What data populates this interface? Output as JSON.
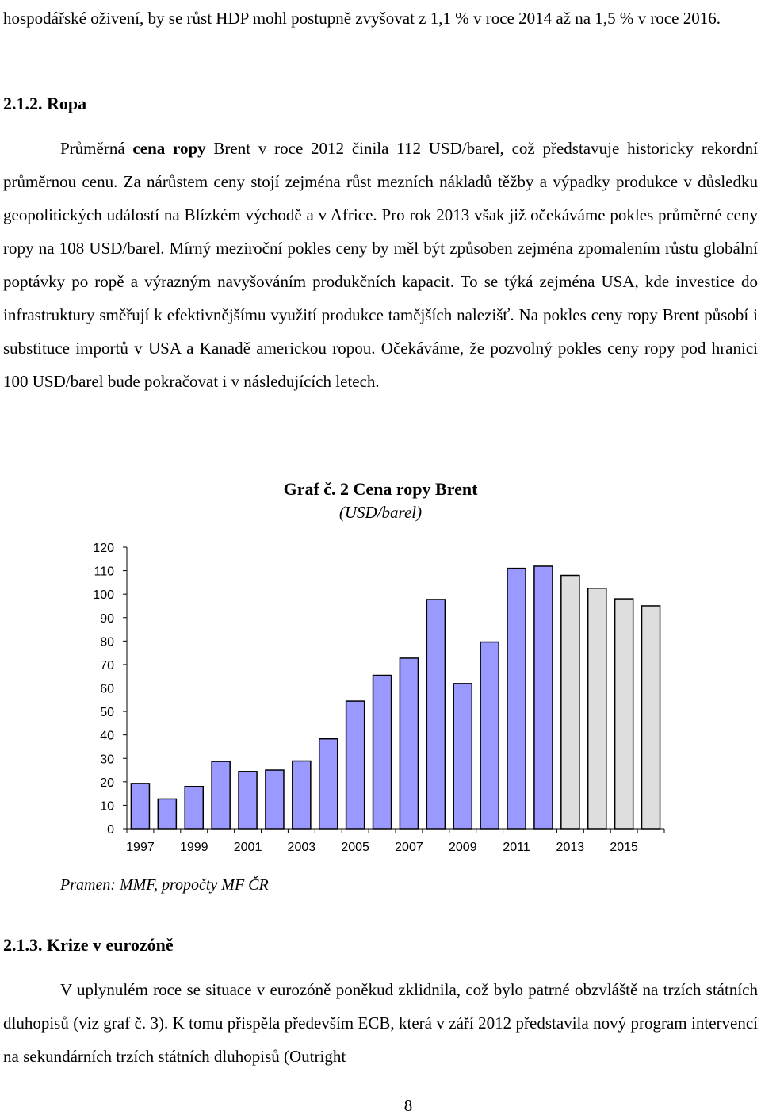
{
  "intro": {
    "text": "hospodářské oživení, by se růst HDP mohl postupně zvyšovat z 1,1 % v roce 2014 až na 1,5 % v roce 2016."
  },
  "section_ropa": {
    "heading": "2.1.2. Ropa",
    "para_lead": "Průměrná ",
    "para_bold": "cena ropy",
    "para_rest": " Brent v roce 2012 činila 112 USD/barel, což představuje historicky rekordní průměrnou cenu. Za nárůstem ceny stojí zejména růst mezních nákladů těžby a výpadky produkce v důsledku geopolitických událostí na Blízkém východě a v Africe. Pro rok 2013 však již očekáváme pokles průměrné ceny ropy na 108 USD/barel. Mírný meziroční pokles ceny by měl být způsoben zejména zpomalením růstu globální poptávky po ropě a výrazným navyšováním produkčních kapacit. To se týká zejména USA, kde investice do infrastruktury směřují k efektivnějšímu využití produkce tamějších nalezišť. Na pokles ceny ropy Brent působí i substituce importů v USA a Kanadě americkou ropou. Očekáváme, že pozvolný pokles ceny ropy pod hranici 100 USD/barel bude pokračovat i v následujících letech."
  },
  "chart": {
    "title": "Graf č. 2 Cena ropy Brent",
    "subtitle": "(USD/barel)",
    "source": "Pramen: MMF, propočty MF ČR"
  },
  "chart_data": {
    "type": "bar",
    "categories": [
      "1997",
      "1998",
      "1999",
      "2000",
      "2001",
      "2002",
      "2003",
      "2004",
      "2005",
      "2006",
      "2007",
      "2008",
      "2009",
      "2010",
      "2011",
      "2012",
      "2013",
      "2014",
      "2015",
      "2016"
    ],
    "values": [
      19.3,
      12.7,
      18.0,
      28.7,
      24.4,
      25.0,
      28.9,
      38.3,
      54.4,
      65.4,
      72.7,
      97.7,
      61.9,
      79.6,
      111.0,
      111.9,
      108.0,
      102.5,
      98.0,
      95.0
    ],
    "forecast_from_index": 16,
    "actual_color": "#9999ff",
    "forecast_color": "#dedede",
    "x_tick_labels": [
      "1997",
      "1999",
      "2001",
      "2003",
      "2005",
      "2007",
      "2009",
      "2011",
      "2013",
      "2015"
    ],
    "y_ticks": [
      0,
      10,
      20,
      30,
      40,
      50,
      60,
      70,
      80,
      90,
      100,
      110,
      120
    ],
    "ylim": [
      0,
      120
    ],
    "grid": false,
    "legend": "none"
  },
  "section_kriz": {
    "heading": "2.1.3. Krize v eurozóně",
    "para": "V uplynulém roce se situace v eurozóně poněkud zklidnila, což bylo patrné obzvláště na trzích státních dluhopisů (viz graf č. 3). K tomu přispěla především ECB, která v září 2012 představila nový program intervencí na sekundárních trzích státních dluhopisů (Outright"
  },
  "page": {
    "number": "8"
  }
}
